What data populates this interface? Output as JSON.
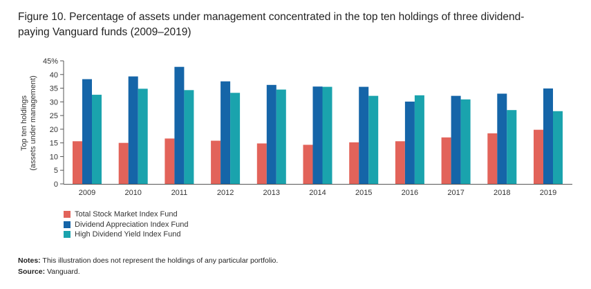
{
  "figure": {
    "title_line1": "Figure 10. Percentage of assets under management concentrated in the top ten holdings of three dividend-",
    "title_line2": "paying Vanguard funds (2009–2019)"
  },
  "notes": {
    "notes_label": "Notes:",
    "notes_text": " This illustration does not represent the holdings of any particular portfolio.",
    "source_label": "Source:",
    "source_text": " Vanguard."
  },
  "chart_data": {
    "type": "bar",
    "ylabel_line1": "Top ten holdings",
    "ylabel_line2": "(assets under management)",
    "xlabel": "",
    "ylim": [
      0,
      45
    ],
    "yticks": [
      "0",
      "5",
      "10",
      "15",
      "20",
      "25",
      "30",
      "35",
      "40",
      "45%"
    ],
    "categories": [
      "2009",
      "2010",
      "2011",
      "2012",
      "2013",
      "2014",
      "2015",
      "2016",
      "2017",
      "2018",
      "2019"
    ],
    "series": [
      {
        "name": "Total Stock Market Index Fund",
        "color": "#e2635a",
        "values": [
          15.6,
          15.0,
          16.6,
          15.8,
          14.8,
          14.3,
          15.2,
          15.6,
          17.0,
          18.5,
          19.8
        ]
      },
      {
        "name": "Dividend Appreciation Index Fund",
        "color": "#1565a8",
        "values": [
          38.3,
          39.3,
          42.8,
          37.5,
          36.2,
          35.6,
          35.5,
          30.1,
          32.2,
          33.0,
          34.9
        ]
      },
      {
        "name": "High Dividend Yield Index Fund",
        "color": "#1aa3ad",
        "values": [
          32.6,
          34.8,
          34.3,
          33.3,
          34.5,
          35.5,
          32.2,
          32.4,
          30.9,
          27.0,
          26.6
        ]
      }
    ],
    "legend_position": "bottom-left"
  }
}
